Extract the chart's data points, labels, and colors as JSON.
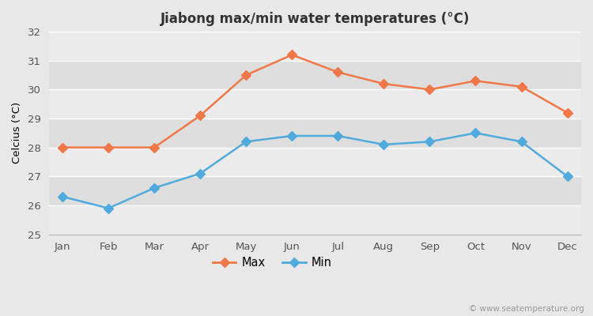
{
  "months": [
    "Jan",
    "Feb",
    "Mar",
    "Apr",
    "May",
    "Jun",
    "Jul",
    "Aug",
    "Sep",
    "Oct",
    "Nov",
    "Dec"
  ],
  "max_temps": [
    28.0,
    28.0,
    28.0,
    29.1,
    30.5,
    31.2,
    30.6,
    30.2,
    30.0,
    30.3,
    30.1,
    29.2
  ],
  "min_temps": [
    26.3,
    25.9,
    26.6,
    27.1,
    28.2,
    28.4,
    28.4,
    28.1,
    28.2,
    28.5,
    28.2,
    27.0
  ],
  "max_color": "#f07848",
  "min_color": "#50aadc",
  "title": "Jiabong max/min water temperatures (°C)",
  "ylabel": "Celcius (°C)",
  "ylim": [
    25,
    32
  ],
  "yticks": [
    25,
    26,
    27,
    28,
    29,
    30,
    31,
    32
  ],
  "bg_color": "#e8e8e8",
  "band_light": "#ebebeb",
  "band_dark": "#dedede",
  "grid_color": "#ffffff",
  "legend_max": "Max",
  "legend_min": "Min",
  "watermark": "© www.seatemperature.org",
  "spine_color": "#bbbbbb"
}
